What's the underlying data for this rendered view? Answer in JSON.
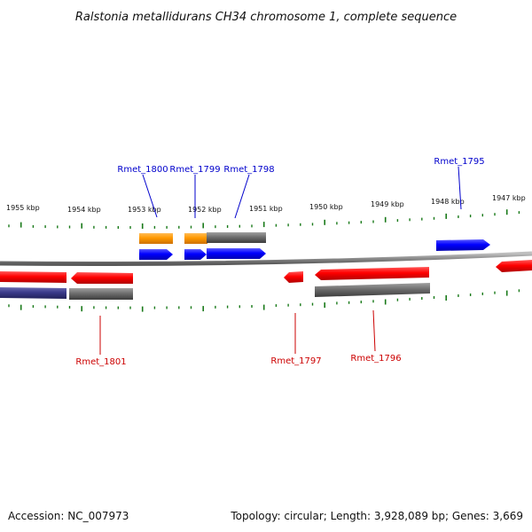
{
  "title": "Ralstonia metallidurans CH34 chromosome 1, complete sequence",
  "footer": {
    "accession": "Accession: NC_007973",
    "summary": "Topology: circular; Length: 3,928,089 bp; Genes: 3,669"
  },
  "colors": {
    "forward_gene": "#0000ff",
    "reverse_gene": "#ff0000",
    "orange_feature": "#ff9900",
    "gray_feature": "#6e6e6e",
    "navy_feature": "#3a3a8a",
    "tick": "#1a7a1a",
    "backbone": "#888888"
  },
  "scale": {
    "ticks": [
      "1955 kbp",
      "1954 kbp",
      "1953 kbp",
      "1952 kbp",
      "1951 kbp",
      "1950 kbp",
      "1949 kbp",
      "1948 kbp",
      "1947 kbp"
    ]
  },
  "gene_labels": {
    "top": [
      "Rmet_1800",
      "Rmet_1799",
      "Rmet_1798",
      "Rmet_1795"
    ],
    "bottom": [
      "Rmet_1801",
      "Rmet_1797",
      "Rmet_1796"
    ]
  }
}
